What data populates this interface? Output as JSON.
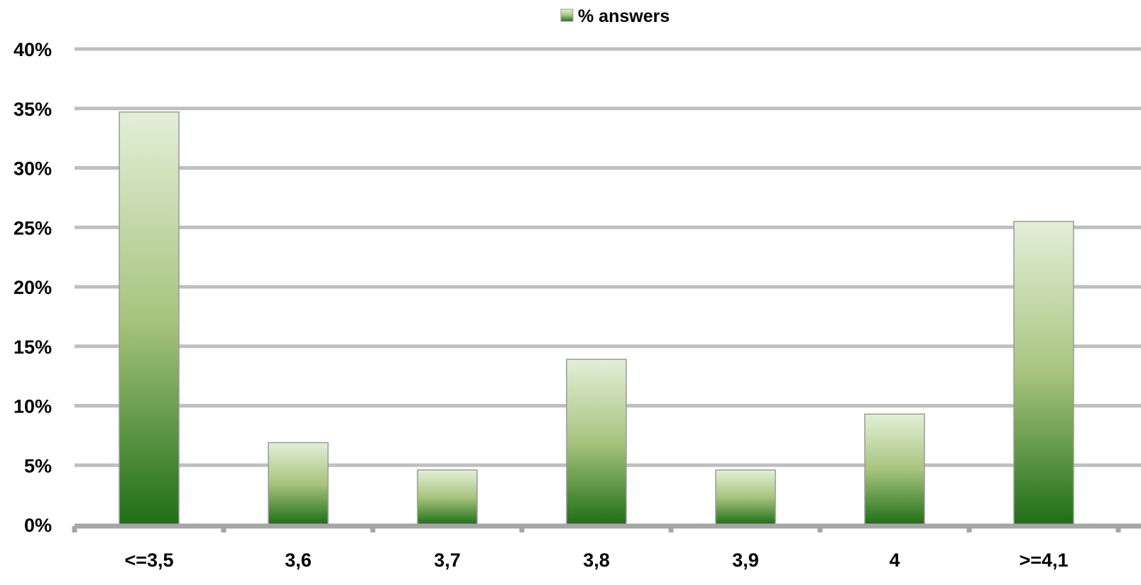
{
  "chart_data": {
    "type": "bar",
    "categories": [
      "<=3,5",
      "3,6",
      "3,7",
      "3,8",
      "3,9",
      "4",
      ">=4,1"
    ],
    "series": [
      {
        "name": "% answers",
        "values": [
          34.7,
          6.9,
          4.6,
          13.9,
          4.6,
          9.3,
          25.5
        ]
      }
    ],
    "ylim": [
      0,
      40
    ],
    "yticks": [
      0,
      5,
      10,
      15,
      20,
      25,
      30,
      35,
      40
    ],
    "ytick_labels": [
      "0%",
      "5%",
      "10%",
      "15%",
      "20%",
      "25%",
      "30%",
      "35%",
      "40%"
    ],
    "grid": true,
    "legend": {
      "position": "top-center",
      "label": "% answers"
    },
    "colors": {
      "bar_top": "#e3efd8",
      "bar_mid": "#a8c47f",
      "bar_bottom": "#1f6e16",
      "bar_border": "#9a9a9a",
      "gridline": "#bfbfbf",
      "axis": "#a6a6a6",
      "text": "#000000"
    }
  }
}
